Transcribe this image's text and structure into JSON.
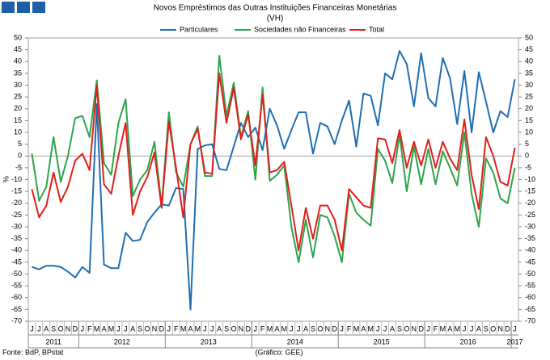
{
  "chart_data": {
    "type": "line",
    "title": "Novos Empréstimos das Outras Instituições Financeiras Monetárias",
    "subtitle": "(VH)",
    "y_label": "%",
    "source": "Fonte: BdP, BPstat",
    "credit": "(Gráfico: GEE)",
    "categories": [
      "J",
      "J",
      "A",
      "S",
      "O",
      "N",
      "D",
      "J",
      "F",
      "M",
      "A",
      "M",
      "J",
      "J",
      "A",
      "S",
      "O",
      "N",
      "D",
      "J",
      "F",
      "M",
      "A",
      "M",
      "J",
      "J",
      "A",
      "S",
      "O",
      "N",
      "D",
      "J",
      "F",
      "M",
      "A",
      "M",
      "J",
      "J",
      "A",
      "S",
      "O",
      "N",
      "D",
      "J",
      "F",
      "M",
      "A",
      "M",
      "J",
      "J",
      "A",
      "S",
      "O",
      "N",
      "D",
      "J",
      "F",
      "M",
      "A",
      "M",
      "J",
      "J",
      "A",
      "S",
      "O",
      "N",
      "D",
      "J"
    ],
    "x_groups": [
      {
        "label": "2011",
        "count": 7
      },
      {
        "label": "2012",
        "count": 12
      },
      {
        "label": "2013",
        "count": 12
      },
      {
        "label": "2014",
        "count": 12
      },
      {
        "label": "2015",
        "count": 12
      },
      {
        "label": "2016",
        "count": 12
      },
      {
        "label": "2017",
        "count": 1
      }
    ],
    "series": [
      {
        "name": "Particulares",
        "color": "#1f6fb2",
        "values": [
          -47,
          -48,
          -46.5,
          -46.5,
          -47,
          -49,
          -51.5,
          -47,
          -49.5,
          22,
          -46,
          -47.5,
          -47.5,
          -32.5,
          -36,
          -35.5,
          -28,
          -24,
          -20.5,
          -21,
          -13.5,
          -14,
          -65,
          3,
          4.5,
          5,
          -5.5,
          -6,
          4,
          14,
          8,
          12,
          2.5,
          20,
          13,
          3,
          11,
          18.5,
          18.5,
          1,
          14,
          12.5,
          5,
          15,
          23.5,
          4,
          26.5,
          25.5,
          13,
          35,
          32.5,
          44.5,
          39,
          21,
          43.5,
          24.5,
          21,
          41.5,
          33,
          13.5,
          36,
          10,
          35.5,
          23,
          10,
          19,
          16.5,
          32.5
        ]
      },
      {
        "name": "Sociedades não Financeiras",
        "color": "#2ca54a",
        "values": [
          1,
          -19,
          -13,
          8,
          -11,
          0,
          16,
          17,
          8,
          32,
          -3,
          -8,
          14,
          24,
          -17,
          -10,
          -6,
          6,
          -21,
          18.5,
          -7,
          -13,
          5,
          12.5,
          -8.5,
          -8.5,
          42.5,
          17,
          31,
          8,
          19,
          -10,
          29,
          -10.5,
          -8,
          -4,
          -30,
          -45,
          -27,
          -43,
          -25,
          -26,
          -34,
          -45,
          -16,
          -24,
          -27,
          -29.5,
          3,
          -2,
          -11.5,
          9,
          -15,
          4,
          -12,
          3,
          -12,
          2,
          -5,
          -12.5,
          10,
          -16,
          -30,
          -1,
          -7,
          -18,
          -20,
          -5
        ]
      },
      {
        "name": "Total",
        "color": "#e0201b",
        "values": [
          -14,
          -26,
          -21,
          -7,
          -19.5,
          -13,
          -2,
          1,
          -6,
          30,
          -12,
          -16,
          0,
          14,
          -25,
          -15,
          -9,
          1.5,
          -22,
          14.5,
          -5,
          -26,
          5,
          11.5,
          -7,
          -7.5,
          35,
          14,
          29,
          7,
          17.5,
          -4,
          26,
          -7,
          -6,
          -2.5,
          -21,
          -40,
          -22,
          -35,
          -21,
          -21,
          -27,
          -40,
          -14,
          -17.5,
          -21,
          -22,
          7.5,
          7,
          -3,
          11,
          -5,
          6,
          -4,
          7,
          -5,
          6,
          -1,
          -6,
          15.5,
          -8,
          -22.5,
          8,
          0,
          -11,
          -12.5,
          3.5
        ]
      }
    ],
    "ylim": [
      -70,
      50
    ],
    "yticks": [
      -70,
      -65,
      -60,
      -55,
      -50,
      -45,
      -40,
      -35,
      -30,
      -25,
      -20,
      -15,
      -10,
      -5,
      0,
      5,
      10,
      15,
      20,
      25,
      30,
      35,
      40,
      45,
      50
    ],
    "y2lim": [
      -70,
      50
    ],
    "y2ticks": [
      -70,
      -65,
      -60,
      -55,
      -50,
      -45,
      -40,
      -35,
      -30,
      -25,
      -20,
      -15,
      -10,
      -5,
      0,
      5,
      10,
      15,
      20,
      25,
      30,
      35,
      40,
      45,
      50
    ],
    "grid": false,
    "legend": "top"
  }
}
